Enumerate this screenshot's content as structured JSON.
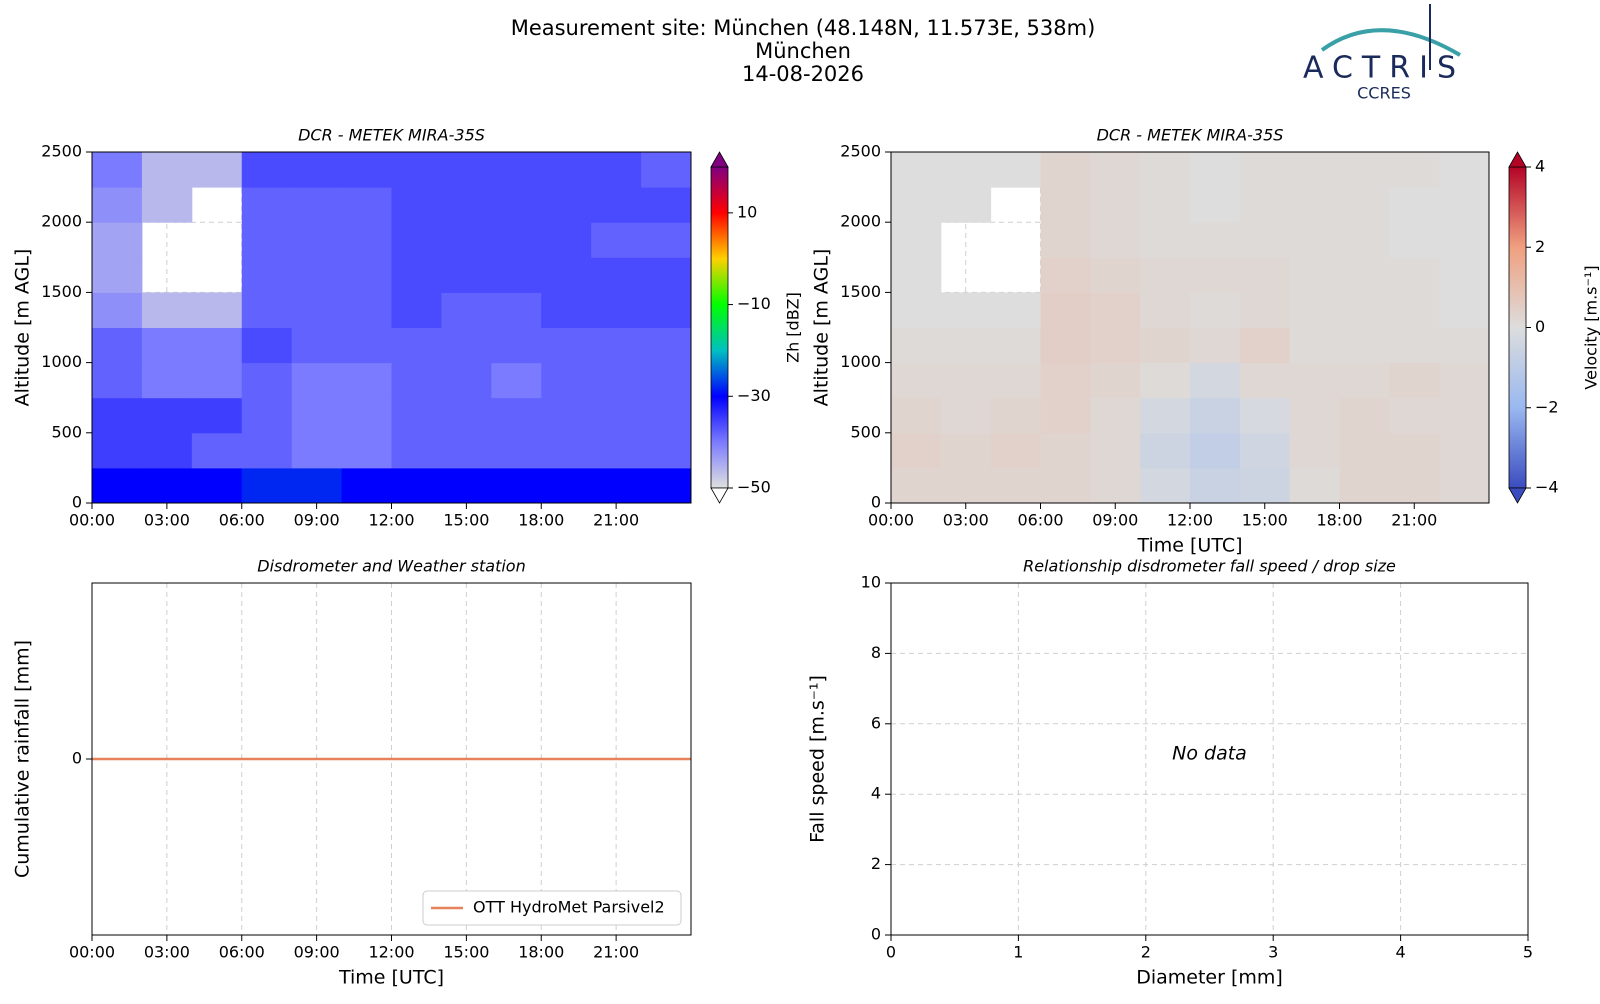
{
  "header": {
    "lines": [
      "Measurement site: München (48.148N, 11.573E, 538m)",
      "München",
      "14-08-2026"
    ],
    "logo": {
      "text": "ACTRIS",
      "subtext": "CCRES"
    }
  },
  "chart_data": [
    {
      "type": "heatmap",
      "title": "DCR - METEK MIRA-35S",
      "ylabel": "Altitude [m AGL]",
      "xlim": [
        0,
        24
      ],
      "ylim": [
        0,
        2500
      ],
      "grid": true,
      "xticks": [
        {
          "value": 0,
          "label": "00:00"
        },
        {
          "value": 3,
          "label": "03:00"
        },
        {
          "value": 6,
          "label": "06:00"
        },
        {
          "value": 9,
          "label": "09:00"
        },
        {
          "value": 12,
          "label": "12:00"
        },
        {
          "value": 15,
          "label": "15:00"
        },
        {
          "value": 18,
          "label": "18:00"
        },
        {
          "value": 21,
          "label": "21:00"
        }
      ],
      "yticks": [
        0,
        500,
        1000,
        1500,
        2000,
        2500
      ],
      "x_edges": [
        0,
        2,
        4,
        6,
        8,
        10,
        12,
        14,
        16,
        18,
        20,
        22,
        24
      ],
      "y_edges": [
        0,
        250,
        500,
        750,
        1000,
        1250,
        1500,
        1750,
        2000,
        2250,
        2500
      ],
      "z": [
        [
          -30,
          -30,
          -30,
          -28,
          -28,
          -30,
          -30,
          -30,
          -30,
          -30,
          -30,
          -30
        ],
        [
          -35,
          -35,
          -38,
          -38,
          -40,
          -40,
          -38,
          -38,
          -38,
          -38,
          -38,
          -38
        ],
        [
          -35,
          -35,
          -35,
          -38,
          -40,
          -40,
          -38,
          -38,
          -38,
          -38,
          -38,
          -38
        ],
        [
          -38,
          -40,
          -40,
          -38,
          -40,
          -40,
          -38,
          -38,
          -40,
          -38,
          -38,
          -38
        ],
        [
          -38,
          -40,
          -40,
          -36,
          -38,
          -38,
          -38,
          -38,
          -38,
          -38,
          -38,
          -38
        ],
        [
          -42,
          -46,
          -46,
          -38,
          -38,
          -38,
          -36,
          -38,
          -38,
          -36,
          -36,
          -36
        ],
        [
          -44,
          null,
          null,
          -38,
          -38,
          -38,
          -36,
          -36,
          -36,
          -36,
          -36,
          -36
        ],
        [
          -44,
          null,
          null,
          -38,
          -38,
          -38,
          -36,
          -36,
          -36,
          -36,
          -38,
          -38
        ],
        [
          -42,
          -46,
          null,
          -38,
          -38,
          -38,
          -36,
          -36,
          -36,
          -36,
          -36,
          -36
        ],
        [
          -40,
          -46,
          -46,
          -36,
          -36,
          -36,
          -36,
          -36,
          -36,
          -36,
          -36,
          -38
        ]
      ],
      "colorbar": {
        "label": "Zh [dBZ]",
        "clim": [
          -50,
          20
        ],
        "ticks": [
          {
            "value": -50,
            "label": "−50"
          },
          {
            "value": -30,
            "label": "−30"
          },
          {
            "value": -10,
            "label": "−10"
          },
          10
        ],
        "colors": [
          "#e0e0e0",
          "#7b7bff",
          "#0000ff",
          "#00c0c0",
          "#00ff00",
          "#ffd000",
          "#ff0000",
          "#800080"
        ]
      }
    },
    {
      "type": "heatmap",
      "title": "DCR - METEK MIRA-35S",
      "xlabel": "Time [UTC]",
      "ylabel": "Altitude [m AGL]",
      "xlim": [
        0,
        24
      ],
      "ylim": [
        0,
        2500
      ],
      "grid": true,
      "xticks": [
        {
          "value": 0,
          "label": "00:00"
        },
        {
          "value": 3,
          "label": "03:00"
        },
        {
          "value": 6,
          "label": "06:00"
        },
        {
          "value": 9,
          "label": "09:00"
        },
        {
          "value": 12,
          "label": "12:00"
        },
        {
          "value": 15,
          "label": "15:00"
        },
        {
          "value": 18,
          "label": "18:00"
        },
        {
          "value": 21,
          "label": "21:00"
        }
      ],
      "yticks": [
        0,
        500,
        1000,
        1500,
        2000,
        2500
      ],
      "x_edges": [
        0,
        2,
        4,
        6,
        8,
        10,
        12,
        14,
        16,
        18,
        20,
        22,
        24
      ],
      "y_edges": [
        0,
        250,
        500,
        750,
        1000,
        1250,
        1500,
        1750,
        2000,
        2250,
        2500
      ],
      "z": [
        [
          0.3,
          0.3,
          0.3,
          0.3,
          0.2,
          -0.3,
          -0.6,
          -0.5,
          0.1,
          0.3,
          0.3,
          0.2
        ],
        [
          0.4,
          0.3,
          0.4,
          0.3,
          0.2,
          -0.5,
          -0.8,
          -0.4,
          0.2,
          0.3,
          0.3,
          0.2
        ],
        [
          0.3,
          0.2,
          0.3,
          0.4,
          0.2,
          -0.3,
          -0.6,
          -0.2,
          0.2,
          0.3,
          0.2,
          0.2
        ],
        [
          0.2,
          0.2,
          0.2,
          0.4,
          0.3,
          0.1,
          -0.3,
          0.2,
          0.2,
          0.2,
          0.3,
          0.2
        ],
        [
          0.1,
          0.1,
          0.1,
          0.5,
          0.4,
          0.3,
          0.2,
          0.4,
          0.1,
          0.1,
          0.1,
          0.1
        ],
        [
          0.0,
          0.0,
          0.0,
          0.5,
          0.4,
          0.2,
          0.1,
          0.2,
          0.1,
          0.1,
          0.1,
          0.0
        ],
        [
          0.0,
          null,
          null,
          0.4,
          0.3,
          0.2,
          0.2,
          0.2,
          0.1,
          0.1,
          0.1,
          0.0
        ],
        [
          0.0,
          null,
          null,
          0.3,
          0.2,
          0.1,
          0.1,
          0.1,
          0.1,
          0.1,
          0.0,
          0.0
        ],
        [
          0.0,
          0.0,
          null,
          0.3,
          0.2,
          0.1,
          0.0,
          0.1,
          0.1,
          0.1,
          0.0,
          0.0
        ],
        [
          0.0,
          0.0,
          0.0,
          0.3,
          0.2,
          0.1,
          0.0,
          0.1,
          0.1,
          0.1,
          0.1,
          0.0
        ]
      ],
      "colorbar": {
        "label": "Velocity [m.s⁻¹]",
        "clim": [
          -4,
          4
        ],
        "ticks": [
          4,
          2,
          0,
          {
            "value": -2,
            "label": "−2"
          },
          {
            "value": -4,
            "label": "−4"
          }
        ],
        "colors": [
          "#3b4cc0",
          "#9ab8f0",
          "#dddddd",
          "#f0a080",
          "#b40426"
        ]
      }
    },
    {
      "type": "line",
      "title": "Disdrometer and Weather station",
      "xlabel": "Time [UTC]",
      "ylabel": "Cumulative rainfall [mm]",
      "xlim": [
        0,
        24
      ],
      "ylim": [
        -0.055,
        0.055
      ],
      "grid": true,
      "legend": "lower right",
      "xticks": [
        {
          "value": 0,
          "label": "00:00"
        },
        {
          "value": 3,
          "label": "03:00"
        },
        {
          "value": 6,
          "label": "06:00"
        },
        {
          "value": 9,
          "label": "09:00"
        },
        {
          "value": 12,
          "label": "12:00"
        },
        {
          "value": 15,
          "label": "15:00"
        },
        {
          "value": 18,
          "label": "18:00"
        },
        {
          "value": 21,
          "label": "21:00"
        }
      ],
      "yticks": [
        0
      ],
      "x": [
        0,
        24
      ],
      "series": [
        {
          "name": "OTT HydroMet Parsivel2",
          "color": "#e8825a",
          "values": [
            0,
            0
          ]
        }
      ]
    },
    {
      "type": "scatter",
      "title": "Relationship disdrometer fall speed / drop size",
      "xlabel": "Diameter [mm]",
      "ylabel": "Fall speed [m.s⁻¹]",
      "xlim": [
        0,
        5
      ],
      "ylim": [
        0,
        10
      ],
      "grid": true,
      "xticks": [
        0,
        1,
        2,
        3,
        4,
        5
      ],
      "yticks": [
        0,
        2,
        4,
        6,
        8,
        10
      ],
      "x": [],
      "values": [],
      "annotation": "No data"
    }
  ]
}
